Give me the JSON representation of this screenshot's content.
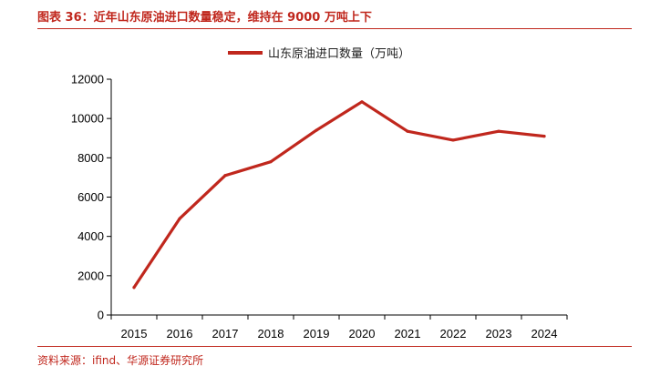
{
  "figure": {
    "title": "图表 36：近年山东原油进口数量稳定，维持在 9000 万吨上下",
    "source": "资料来源：ifind、华源证券研究所",
    "accent_color": "#c0271d"
  },
  "chart_data": {
    "type": "line",
    "title": "",
    "xlabel": "",
    "ylabel": "",
    "categories": [
      "2015",
      "2016",
      "2017",
      "2018",
      "2019",
      "2020",
      "2021",
      "2022",
      "2023",
      "2024"
    ],
    "series": [
      {
        "name": "山东原油进口数量（万吨）",
        "color": "#c0271d",
        "values": [
          1400,
          4900,
          7100,
          7800,
          9400,
          10850,
          9350,
          8900,
          9350,
          9100
        ]
      }
    ],
    "ylim": [
      0,
      12000
    ],
    "yticks": [
      "0",
      "2000",
      "4000",
      "6000",
      "8000",
      "10000",
      "12000"
    ],
    "grid": false,
    "legend_position": "top-center"
  }
}
